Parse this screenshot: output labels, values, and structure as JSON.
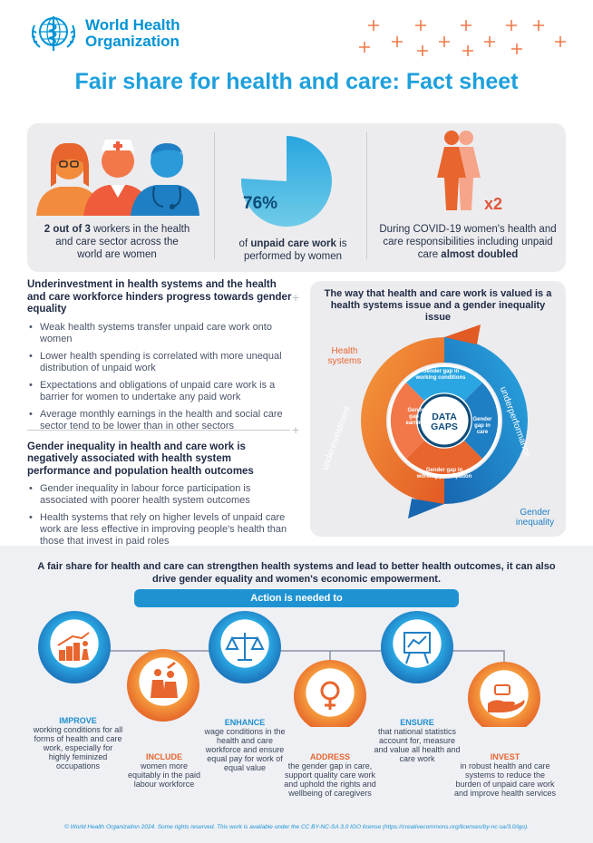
{
  "header": {
    "org_name_line1": "World Health",
    "org_name_line2": "Organization",
    "title": "Fair share for health and care: Fact sheet"
  },
  "stats": {
    "s1_bold": "2 out of 3",
    "s1_rest": " workers in the health and care sector across the world are women",
    "s2_value": "76%",
    "s2_text_a": "of ",
    "s2_bold": "unpaid care work",
    "s2_text_b": " is performed by women",
    "s3_multiplier": "x2",
    "s3_text": "During COVID-19 women's health and care responsibilities including unpaid care ",
    "s3_bold": "almost doubled",
    "unpaid_share": 0.76
  },
  "left": {
    "heading1": "Underinvestment in health systems and the health and care workforce hinders progress towards gender equality",
    "bullets1": [
      "Weak health systems transfer unpaid care work onto women",
      "Lower health spending is correlated with more unequal distribution of unpaid work",
      "Expectations and obligations of unpaid care work is a barrier for women to undertake any paid work",
      "Average monthly earnings in the health and social care sector tend to be lower than in other sectors"
    ],
    "heading2": "Gender inequality in health and care work is negatively associated with health system performance and population health outcomes",
    "bullets2": [
      "Gender inequality in labour force participation is associated with poorer health system outcomes",
      "Health systems that rely on higher levels of unpaid care work are less effective in improving people's health than those that invest in paid roles"
    ]
  },
  "diagram": {
    "title": "The way that health and care work is valued is a health systems issue and a gender inequality issue",
    "health_systems": "Health systems",
    "gender_inequality": "Gender inequality",
    "underinvestment": "underinvestment",
    "underperformance": "underperformance",
    "center_line1": "DATA",
    "center_line2": "GAPS",
    "gap_top_1": "Gender gap in",
    "gap_top_2": "working conditions",
    "gap_left_1": "Gender",
    "gap_left_2": "gap in",
    "gap_left_3": "earnings",
    "gap_right_1": "Gender",
    "gap_right_2": "gap in",
    "gap_right_3": "care",
    "gap_bottom_1": "Gender gap in",
    "gap_bottom_2": "working participation"
  },
  "actions": {
    "intro": "A fair share for health and care can strengthen health systems and lead to better health outcomes, it can also drive gender equality and women's economic empowerment.",
    "bar_label": "Action is needed to",
    "items": [
      {
        "verb": "IMPROVE",
        "text": "working conditions for all forms of health and care work, especially for highly feminized occupations"
      },
      {
        "verb": "INCLUDE",
        "text": "women more equitably in the paid labour workforce"
      },
      {
        "verb": "ENHANCE",
        "text": "wage conditions in the health and care workforce and ensure equal pay for work of equal value"
      },
      {
        "verb": "ADDRESS",
        "text": "the gender gap in care, support quality care work and uphold the rights and wellbeing of caregivers"
      },
      {
        "verb": "ENSURE",
        "text": "that national statistics account for, measure and value all health and care work"
      },
      {
        "verb": "INVEST",
        "text": "in robust health and care systems to reduce the burden of unpaid care work and improve health services"
      }
    ]
  },
  "footer": "© World Health Organization 2024. Some rights reserved. This work is available under the CC BY-NC-SA 3.0 IGO license (https://creativecommons.org/licenses/by-nc-sa/3.0/igo).",
  "colors": {
    "blue": "#1ea0dc",
    "orange": "#e8652e",
    "navy": "#0d4c7a"
  }
}
